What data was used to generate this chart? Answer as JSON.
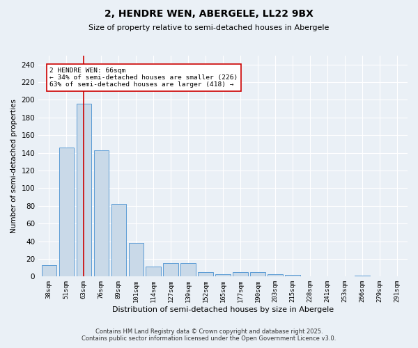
{
  "title_line1": "2, HENDRE WEN, ABERGELE, LL22 9BX",
  "title_line2": "Size of property relative to semi-detached houses in Abergele",
  "xlabel": "Distribution of semi-detached houses by size in Abergele",
  "ylabel": "Number of semi-detached properties",
  "categories": [
    "38sqm",
    "51sqm",
    "63sqm",
    "76sqm",
    "89sqm",
    "101sqm",
    "114sqm",
    "127sqm",
    "139sqm",
    "152sqm",
    "165sqm",
    "177sqm",
    "190sqm",
    "203sqm",
    "215sqm",
    "228sqm",
    "241sqm",
    "253sqm",
    "266sqm",
    "279sqm",
    "291sqm"
  ],
  "values": [
    13,
    146,
    196,
    143,
    82,
    38,
    11,
    15,
    15,
    5,
    3,
    5,
    5,
    3,
    2,
    0,
    0,
    0,
    1,
    0,
    0
  ],
  "bar_color": "#c9d9e8",
  "bar_edge_color": "#5b9bd5",
  "vline_x": 2,
  "vline_color": "#cc0000",
  "annotation_text": "2 HENDRE WEN: 66sqm\n← 34% of semi-detached houses are smaller (226)\n63% of semi-detached houses are larger (418) →",
  "annotation_box_color": "#ffffff",
  "annotation_box_edgecolor": "#cc0000",
  "ylim": [
    0,
    250
  ],
  "yticks": [
    0,
    20,
    40,
    60,
    80,
    100,
    120,
    140,
    160,
    180,
    200,
    220,
    240
  ],
  "footer_line1": "Contains HM Land Registry data © Crown copyright and database right 2025.",
  "footer_line2": "Contains public sector information licensed under the Open Government Licence v3.0.",
  "bg_color": "#eaf0f6",
  "grid_color": "#ffffff"
}
